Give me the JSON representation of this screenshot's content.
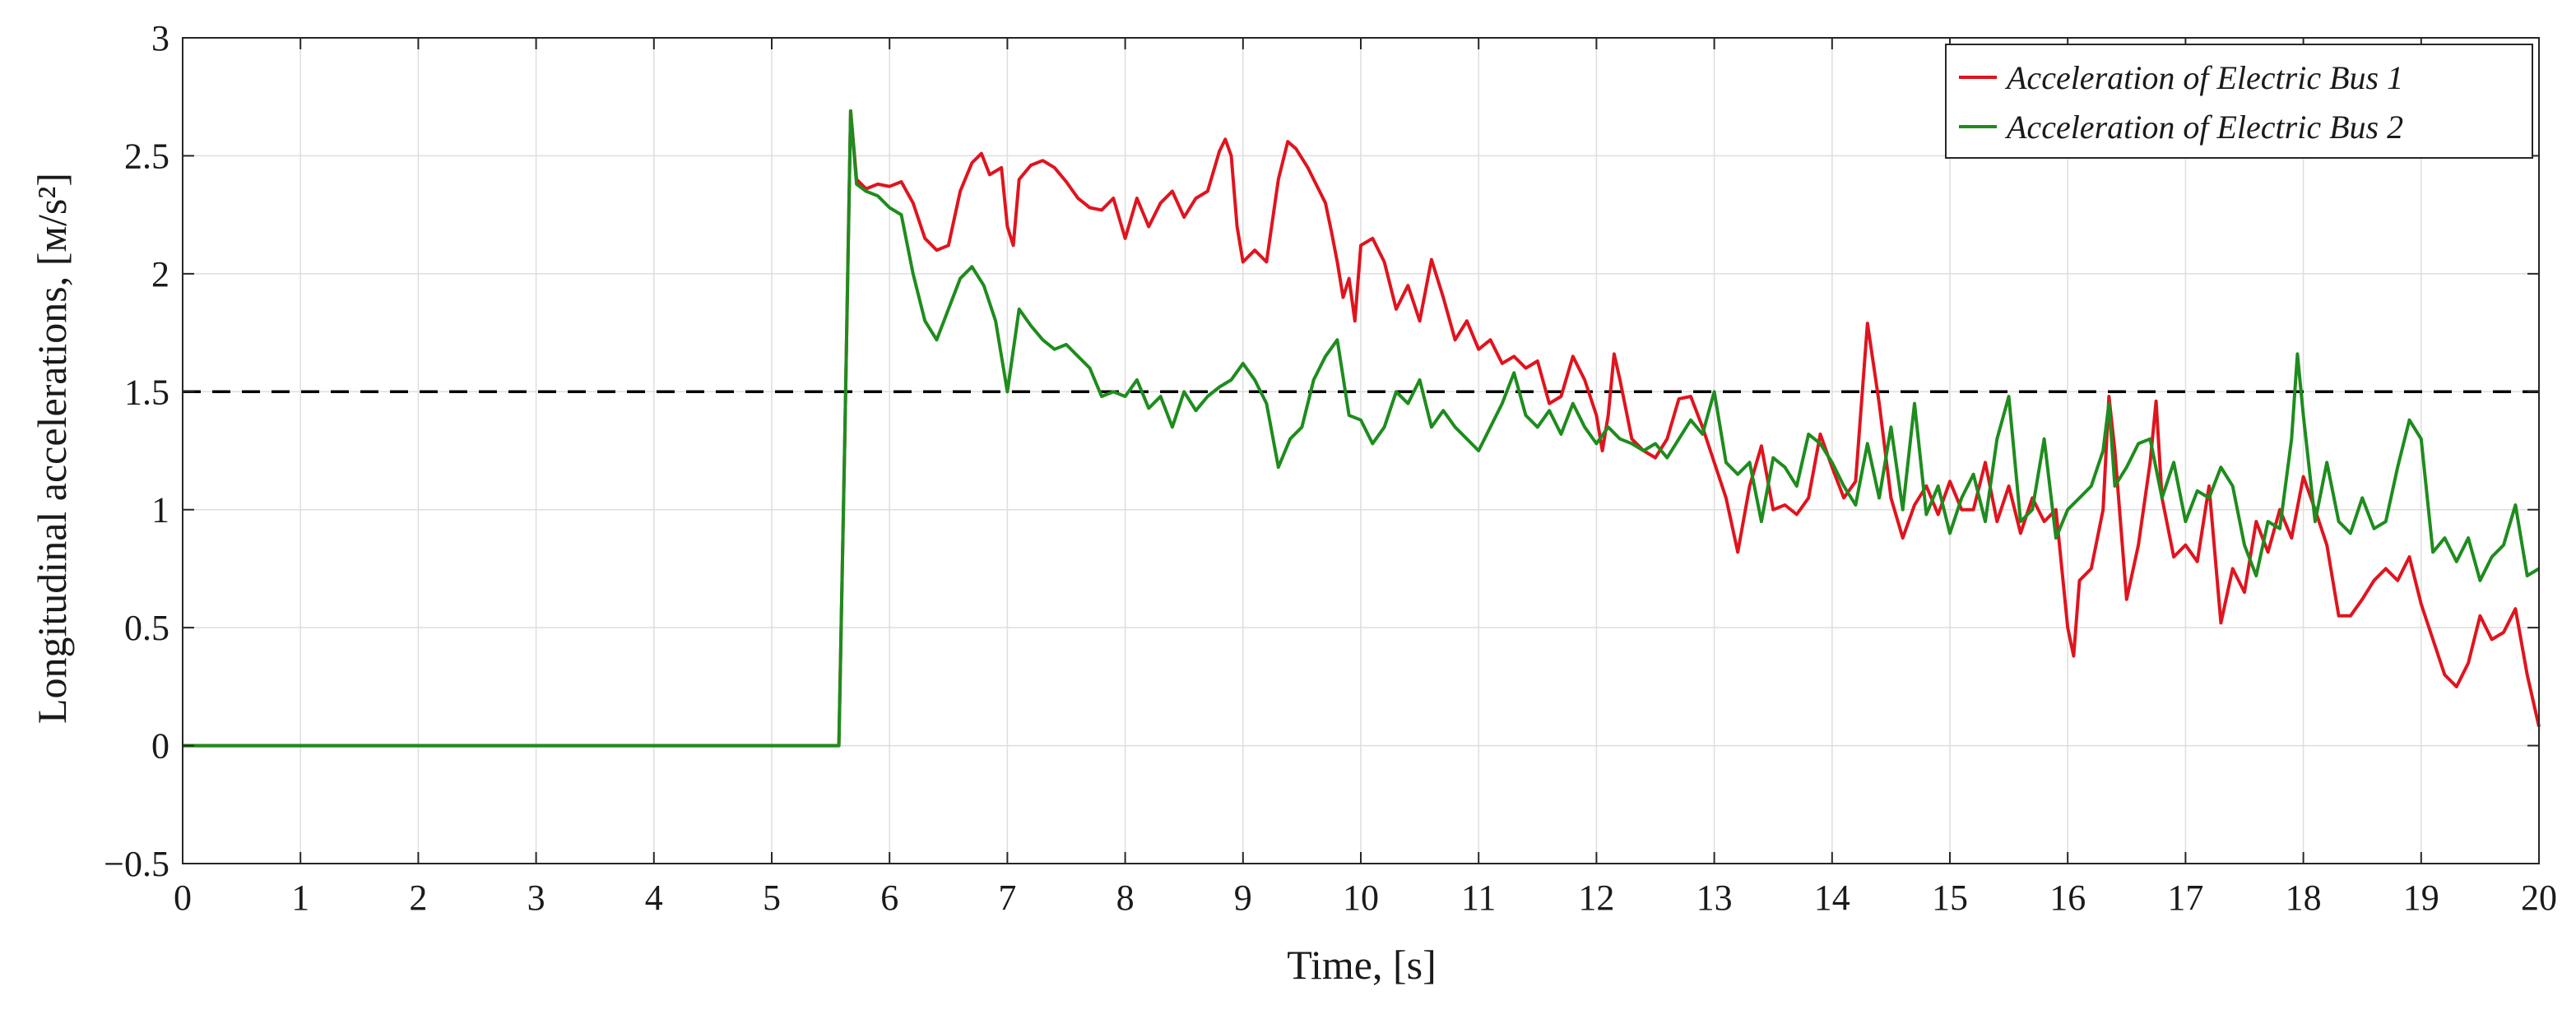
{
  "chart_data": {
    "type": "line",
    "xlabel": "Time, [s]",
    "ylabel": "Longitudinal accelerations, [м/s²]",
    "xlim": [
      0,
      20
    ],
    "ylim": [
      -0.5,
      3
    ],
    "xticks": [
      "0",
      "1",
      "2",
      "3",
      "4",
      "5",
      "6",
      "7",
      "8",
      "9",
      "10",
      "11",
      "12",
      "13",
      "14",
      "15",
      "16",
      "17",
      "18",
      "19",
      "20"
    ],
    "yticks": [
      "−0.5",
      "0",
      "0.5",
      "1",
      "1.5",
      "2",
      "2.5",
      "3"
    ],
    "grid": true,
    "legend_position": "top-right",
    "reference_line": {
      "y": 1.5,
      "style": "dashed",
      "color": "#000000"
    },
    "series": [
      {
        "name": "Acceleration of Electric Bus 1",
        "color": "#e0141e",
        "points": [
          [
            0,
            0
          ],
          [
            5.57,
            0
          ],
          [
            5.62,
            1.3
          ],
          [
            5.67,
            2.69
          ],
          [
            5.72,
            2.4
          ],
          [
            5.8,
            2.36
          ],
          [
            5.9,
            2.38
          ],
          [
            6.0,
            2.37
          ],
          [
            6.1,
            2.39
          ],
          [
            6.2,
            2.3
          ],
          [
            6.3,
            2.15
          ],
          [
            6.4,
            2.1
          ],
          [
            6.5,
            2.12
          ],
          [
            6.6,
            2.35
          ],
          [
            6.7,
            2.47
          ],
          [
            6.78,
            2.51
          ],
          [
            6.85,
            2.42
          ],
          [
            6.95,
            2.45
          ],
          [
            7.0,
            2.2
          ],
          [
            7.05,
            2.12
          ],
          [
            7.1,
            2.4
          ],
          [
            7.2,
            2.46
          ],
          [
            7.3,
            2.48
          ],
          [
            7.4,
            2.45
          ],
          [
            7.5,
            2.39
          ],
          [
            7.6,
            2.32
          ],
          [
            7.7,
            2.28
          ],
          [
            7.8,
            2.27
          ],
          [
            7.9,
            2.32
          ],
          [
            8.0,
            2.15
          ],
          [
            8.1,
            2.32
          ],
          [
            8.2,
            2.2
          ],
          [
            8.3,
            2.3
          ],
          [
            8.4,
            2.35
          ],
          [
            8.5,
            2.24
          ],
          [
            8.6,
            2.32
          ],
          [
            8.7,
            2.35
          ],
          [
            8.8,
            2.52
          ],
          [
            8.85,
            2.57
          ],
          [
            8.9,
            2.5
          ],
          [
            8.95,
            2.2
          ],
          [
            9.0,
            2.05
          ],
          [
            9.1,
            2.1
          ],
          [
            9.2,
            2.05
          ],
          [
            9.3,
            2.4
          ],
          [
            9.38,
            2.56
          ],
          [
            9.45,
            2.53
          ],
          [
            9.55,
            2.45
          ],
          [
            9.6,
            2.4
          ],
          [
            9.7,
            2.3
          ],
          [
            9.75,
            2.18
          ],
          [
            9.8,
            2.05
          ],
          [
            9.85,
            1.9
          ],
          [
            9.9,
            1.98
          ],
          [
            9.95,
            1.8
          ],
          [
            10.0,
            2.12
          ],
          [
            10.1,
            2.15
          ],
          [
            10.2,
            2.05
          ],
          [
            10.3,
            1.85
          ],
          [
            10.4,
            1.95
          ],
          [
            10.5,
            1.8
          ],
          [
            10.6,
            2.06
          ],
          [
            10.7,
            1.9
          ],
          [
            10.8,
            1.72
          ],
          [
            10.9,
            1.8
          ],
          [
            11.0,
            1.68
          ],
          [
            11.1,
            1.72
          ],
          [
            11.2,
            1.62
          ],
          [
            11.3,
            1.65
          ],
          [
            11.4,
            1.6
          ],
          [
            11.5,
            1.63
          ],
          [
            11.6,
            1.45
          ],
          [
            11.7,
            1.48
          ],
          [
            11.8,
            1.65
          ],
          [
            11.9,
            1.55
          ],
          [
            12.0,
            1.4
          ],
          [
            12.05,
            1.25
          ],
          [
            12.1,
            1.4
          ],
          [
            12.15,
            1.66
          ],
          [
            12.2,
            1.55
          ],
          [
            12.3,
            1.3
          ],
          [
            12.4,
            1.25
          ],
          [
            12.5,
            1.22
          ],
          [
            12.6,
            1.3
          ],
          [
            12.7,
            1.47
          ],
          [
            12.8,
            1.48
          ],
          [
            12.9,
            1.35
          ],
          [
            13.0,
            1.2
          ],
          [
            13.1,
            1.05
          ],
          [
            13.2,
            0.82
          ],
          [
            13.3,
            1.1
          ],
          [
            13.4,
            1.27
          ],
          [
            13.5,
            1.0
          ],
          [
            13.6,
            1.02
          ],
          [
            13.7,
            0.98
          ],
          [
            13.8,
            1.05
          ],
          [
            13.9,
            1.32
          ],
          [
            14.0,
            1.18
          ],
          [
            14.1,
            1.05
          ],
          [
            14.2,
            1.12
          ],
          [
            14.3,
            1.79
          ],
          [
            14.4,
            1.45
          ],
          [
            14.5,
            1.05
          ],
          [
            14.6,
            0.88
          ],
          [
            14.7,
            1.02
          ],
          [
            14.8,
            1.1
          ],
          [
            14.9,
            0.98
          ],
          [
            15.0,
            1.12
          ],
          [
            15.1,
            1.0
          ],
          [
            15.2,
            1.0
          ],
          [
            15.3,
            1.2
          ],
          [
            15.4,
            0.95
          ],
          [
            15.5,
            1.1
          ],
          [
            15.6,
            0.9
          ],
          [
            15.7,
            1.05
          ],
          [
            15.8,
            0.95
          ],
          [
            15.9,
            1.0
          ],
          [
            16.0,
            0.5
          ],
          [
            16.05,
            0.38
          ],
          [
            16.1,
            0.7
          ],
          [
            16.2,
            0.75
          ],
          [
            16.3,
            1.0
          ],
          [
            16.35,
            1.48
          ],
          [
            16.4,
            1.25
          ],
          [
            16.5,
            0.62
          ],
          [
            16.6,
            0.85
          ],
          [
            16.7,
            1.2
          ],
          [
            16.75,
            1.46
          ],
          [
            16.8,
            1.05
          ],
          [
            16.9,
            0.8
          ],
          [
            17.0,
            0.85
          ],
          [
            17.1,
            0.78
          ],
          [
            17.2,
            1.1
          ],
          [
            17.3,
            0.52
          ],
          [
            17.4,
            0.75
          ],
          [
            17.5,
            0.65
          ],
          [
            17.6,
            0.95
          ],
          [
            17.7,
            0.82
          ],
          [
            17.8,
            1.0
          ],
          [
            17.9,
            0.88
          ],
          [
            18.0,
            1.14
          ],
          [
            18.1,
            1.0
          ],
          [
            18.2,
            0.85
          ],
          [
            18.3,
            0.55
          ],
          [
            18.4,
            0.55
          ],
          [
            18.5,
            0.62
          ],
          [
            18.6,
            0.7
          ],
          [
            18.7,
            0.75
          ],
          [
            18.8,
            0.7
          ],
          [
            18.9,
            0.8
          ],
          [
            19.0,
            0.6
          ],
          [
            19.1,
            0.45
          ],
          [
            19.2,
            0.3
          ],
          [
            19.3,
            0.25
          ],
          [
            19.4,
            0.35
          ],
          [
            19.5,
            0.55
          ],
          [
            19.6,
            0.45
          ],
          [
            19.7,
            0.48
          ],
          [
            19.8,
            0.58
          ],
          [
            19.9,
            0.3
          ],
          [
            20.0,
            0.08
          ]
        ]
      },
      {
        "name": "Acceleration of Electric Bus 2",
        "color": "#1e8c1e",
        "points": [
          [
            0,
            0
          ],
          [
            5.57,
            0
          ],
          [
            5.62,
            1.3
          ],
          [
            5.67,
            2.69
          ],
          [
            5.72,
            2.38
          ],
          [
            5.8,
            2.35
          ],
          [
            5.9,
            2.33
          ],
          [
            6.0,
            2.28
          ],
          [
            6.1,
            2.25
          ],
          [
            6.2,
            2.0
          ],
          [
            6.3,
            1.8
          ],
          [
            6.4,
            1.72
          ],
          [
            6.5,
            1.85
          ],
          [
            6.6,
            1.98
          ],
          [
            6.7,
            2.03
          ],
          [
            6.8,
            1.95
          ],
          [
            6.9,
            1.8
          ],
          [
            7.0,
            1.5
          ],
          [
            7.1,
            1.85
          ],
          [
            7.2,
            1.78
          ],
          [
            7.3,
            1.72
          ],
          [
            7.4,
            1.68
          ],
          [
            7.5,
            1.7
          ],
          [
            7.6,
            1.65
          ],
          [
            7.7,
            1.6
          ],
          [
            7.8,
            1.48
          ],
          [
            7.9,
            1.5
          ],
          [
            8.0,
            1.48
          ],
          [
            8.1,
            1.55
          ],
          [
            8.2,
            1.43
          ],
          [
            8.3,
            1.48
          ],
          [
            8.4,
            1.35
          ],
          [
            8.5,
            1.5
          ],
          [
            8.6,
            1.42
          ],
          [
            8.7,
            1.48
          ],
          [
            8.8,
            1.52
          ],
          [
            8.9,
            1.55
          ],
          [
            9.0,
            1.62
          ],
          [
            9.1,
            1.55
          ],
          [
            9.2,
            1.45
          ],
          [
            9.3,
            1.18
          ],
          [
            9.4,
            1.3
          ],
          [
            9.5,
            1.35
          ],
          [
            9.6,
            1.55
          ],
          [
            9.7,
            1.65
          ],
          [
            9.8,
            1.72
          ],
          [
            9.9,
            1.4
          ],
          [
            10.0,
            1.38
          ],
          [
            10.1,
            1.28
          ],
          [
            10.2,
            1.35
          ],
          [
            10.3,
            1.5
          ],
          [
            10.4,
            1.45
          ],
          [
            10.5,
            1.55
          ],
          [
            10.6,
            1.35
          ],
          [
            10.7,
            1.42
          ],
          [
            10.8,
            1.35
          ],
          [
            10.9,
            1.3
          ],
          [
            11.0,
            1.25
          ],
          [
            11.1,
            1.35
          ],
          [
            11.2,
            1.45
          ],
          [
            11.3,
            1.58
          ],
          [
            11.4,
            1.4
          ],
          [
            11.5,
            1.35
          ],
          [
            11.6,
            1.42
          ],
          [
            11.7,
            1.32
          ],
          [
            11.8,
            1.45
          ],
          [
            11.9,
            1.35
          ],
          [
            12.0,
            1.28
          ],
          [
            12.1,
            1.35
          ],
          [
            12.2,
            1.3
          ],
          [
            12.3,
            1.28
          ],
          [
            12.4,
            1.25
          ],
          [
            12.5,
            1.28
          ],
          [
            12.6,
            1.22
          ],
          [
            12.7,
            1.3
          ],
          [
            12.8,
            1.38
          ],
          [
            12.9,
            1.32
          ],
          [
            13.0,
            1.5
          ],
          [
            13.1,
            1.2
          ],
          [
            13.2,
            1.15
          ],
          [
            13.3,
            1.2
          ],
          [
            13.4,
            0.95
          ],
          [
            13.5,
            1.22
          ],
          [
            13.6,
            1.18
          ],
          [
            13.7,
            1.1
          ],
          [
            13.8,
            1.32
          ],
          [
            13.9,
            1.28
          ],
          [
            14.0,
            1.2
          ],
          [
            14.1,
            1.1
          ],
          [
            14.2,
            1.02
          ],
          [
            14.3,
            1.28
          ],
          [
            14.4,
            1.05
          ],
          [
            14.5,
            1.35
          ],
          [
            14.6,
            1.0
          ],
          [
            14.7,
            1.45
          ],
          [
            14.8,
            0.98
          ],
          [
            14.9,
            1.1
          ],
          [
            15.0,
            0.9
          ],
          [
            15.1,
            1.05
          ],
          [
            15.2,
            1.15
          ],
          [
            15.3,
            0.95
          ],
          [
            15.4,
            1.3
          ],
          [
            15.5,
            1.48
          ],
          [
            15.6,
            0.95
          ],
          [
            15.7,
            1.0
          ],
          [
            15.8,
            1.3
          ],
          [
            15.9,
            0.88
          ],
          [
            16.0,
            1.0
          ],
          [
            16.1,
            1.05
          ],
          [
            16.2,
            1.1
          ],
          [
            16.3,
            1.25
          ],
          [
            16.35,
            1.45
          ],
          [
            16.4,
            1.1
          ],
          [
            16.5,
            1.18
          ],
          [
            16.6,
            1.28
          ],
          [
            16.7,
            1.3
          ],
          [
            16.8,
            1.05
          ],
          [
            16.9,
            1.2
          ],
          [
            17.0,
            0.95
          ],
          [
            17.1,
            1.08
          ],
          [
            17.2,
            1.05
          ],
          [
            17.3,
            1.18
          ],
          [
            17.4,
            1.1
          ],
          [
            17.5,
            0.85
          ],
          [
            17.6,
            0.72
          ],
          [
            17.7,
            0.95
          ],
          [
            17.8,
            0.92
          ],
          [
            17.9,
            1.3
          ],
          [
            17.95,
            1.66
          ],
          [
            18.0,
            1.4
          ],
          [
            18.1,
            0.95
          ],
          [
            18.2,
            1.2
          ],
          [
            18.3,
            0.95
          ],
          [
            18.4,
            0.9
          ],
          [
            18.5,
            1.05
          ],
          [
            18.6,
            0.92
          ],
          [
            18.7,
            0.95
          ],
          [
            18.8,
            1.18
          ],
          [
            18.9,
            1.38
          ],
          [
            19.0,
            1.3
          ],
          [
            19.1,
            0.82
          ],
          [
            19.2,
            0.88
          ],
          [
            19.3,
            0.78
          ],
          [
            19.4,
            0.88
          ],
          [
            19.5,
            0.7
          ],
          [
            19.6,
            0.8
          ],
          [
            19.7,
            0.85
          ],
          [
            19.8,
            1.02
          ],
          [
            19.9,
            0.72
          ],
          [
            20.0,
            0.75
          ]
        ]
      }
    ]
  }
}
